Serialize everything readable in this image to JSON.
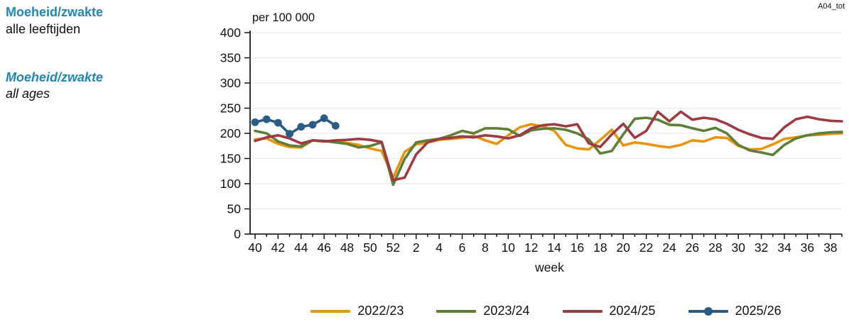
{
  "annotation": "A04_tot",
  "header": {
    "title_nl": "Moeheid/zwakte",
    "subtitle_nl": "alle leeftijden",
    "title_en": "Moeheid/zwakte",
    "subtitle_en": "all ages"
  },
  "colors": {
    "title_blue": "#1e86ba",
    "grid": "#e4ebf2",
    "axis": "#000000"
  },
  "chart_data": {
    "type": "line",
    "title": "",
    "y_axis_label": "per 100 000",
    "x_axis_label": "week",
    "ylim": [
      0,
      400
    ],
    "y_ticks": [
      0,
      50,
      100,
      150,
      200,
      250,
      300,
      350,
      400
    ],
    "grid": "horizontal",
    "legend_position": "bottom",
    "categories": [
      "40",
      "41",
      "42",
      "43",
      "44",
      "45",
      "46",
      "47",
      "48",
      "49",
      "50",
      "51",
      "52",
      "1",
      "2",
      "3",
      "4",
      "5",
      "6",
      "7",
      "8",
      "9",
      "10",
      "11",
      "12",
      "13",
      "14",
      "15",
      "16",
      "17",
      "18",
      "19",
      "20",
      "21",
      "22",
      "23",
      "24",
      "25",
      "26",
      "27",
      "28",
      "29",
      "30",
      "31",
      "32",
      "33",
      "34",
      "35",
      "36",
      "37",
      "38",
      "39"
    ],
    "label_every": 2,
    "series": [
      {
        "name": "2022/23",
        "color": "#e8940f",
        "marker": false,
        "values": [
          188,
          190,
          179,
          173,
          172,
          186,
          185,
          184,
          181,
          177,
          170,
          165,
          112,
          163,
          178,
          182,
          187,
          189,
          191,
          195,
          186,
          179,
          196,
          212,
          218,
          214,
          205,
          177,
          170,
          168,
          187,
          207,
          176,
          182,
          179,
          175,
          172,
          177,
          186,
          184,
          192,
          191,
          175,
          168,
          169,
          178,
          189,
          192,
          196,
          197,
          199,
          200
        ]
      },
      {
        "name": "2023/24",
        "color": "#5d7f37",
        "marker": false,
        "values": [
          205,
          200,
          184,
          176,
          174,
          186,
          185,
          182,
          179,
          172,
          175,
          182,
          98,
          149,
          182,
          186,
          189,
          196,
          205,
          200,
          210,
          210,
          208,
          195,
          206,
          209,
          210,
          207,
          200,
          188,
          160,
          165,
          198,
          229,
          231,
          227,
          217,
          216,
          210,
          205,
          211,
          200,
          177,
          166,
          162,
          157,
          177,
          190,
          196,
          200,
          202,
          203
        ]
      },
      {
        "name": "2024/25",
        "color": "#9d3b40",
        "marker": false,
        "values": [
          185,
          192,
          196,
          190,
          180,
          186,
          184,
          186,
          187,
          189,
          187,
          183,
          107,
          112,
          158,
          182,
          189,
          191,
          194,
          192,
          196,
          194,
          190,
          196,
          210,
          216,
          218,
          214,
          218,
          180,
          173,
          198,
          219,
          191,
          205,
          243,
          224,
          243,
          227,
          231,
          228,
          219,
          207,
          198,
          191,
          189,
          212,
          228,
          233,
          228,
          225,
          224
        ]
      },
      {
        "name": "2025/26",
        "color": "#2b5c85",
        "marker": true,
        "values": [
          222,
          228,
          221,
          199,
          213,
          217,
          230,
          215,
          null,
          null,
          null,
          null,
          null,
          null,
          null,
          null,
          null,
          null,
          null,
          null,
          null,
          null,
          null,
          null,
          null,
          null,
          null,
          null,
          null,
          null,
          null,
          null,
          null,
          null,
          null,
          null,
          null,
          null,
          null,
          null,
          null,
          null,
          null,
          null,
          null,
          null,
          null,
          null,
          null,
          null,
          null,
          null
        ]
      }
    ]
  }
}
